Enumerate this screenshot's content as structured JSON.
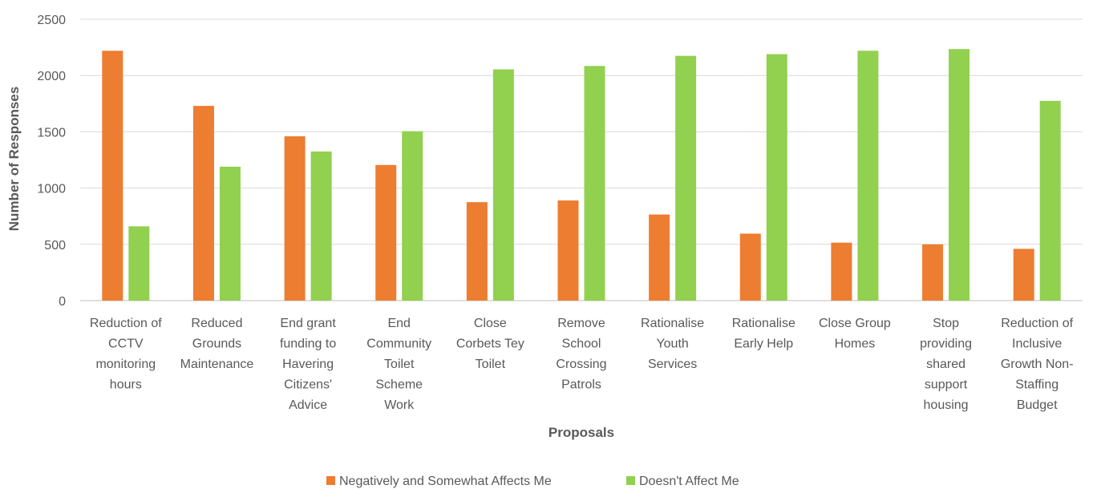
{
  "chart_data": {
    "type": "bar",
    "title": "",
    "xlabel": "Proposals",
    "ylabel": "Number of Responses",
    "ylim": [
      0,
      2500
    ],
    "yticks": [
      0,
      500,
      1000,
      1500,
      2000,
      2500
    ],
    "grid": true,
    "legend_position": "bottom",
    "categories": [
      [
        "Reduction of",
        "CCTV",
        "monitoring",
        "hours"
      ],
      [
        "Reduced",
        "Grounds",
        "Maintenance"
      ],
      [
        "End grant",
        "funding to",
        "Havering",
        "Citizens'",
        "Advice"
      ],
      [
        "End",
        "Community",
        "Toilet",
        "Scheme",
        "Work"
      ],
      [
        "Close",
        "Corbets Tey",
        "Toilet"
      ],
      [
        "Remove",
        "School",
        "Crossing",
        "Patrols"
      ],
      [
        "Rationalise",
        "Youth",
        "Services"
      ],
      [
        "Rationalise",
        "Early Help"
      ],
      [
        "Close Group",
        "Homes"
      ],
      [
        "Stop",
        "providing",
        "shared",
        "support",
        "housing"
      ],
      [
        "Reduction of",
        "Inclusive",
        "Growth Non-",
        "Staffing",
        "Budget"
      ]
    ],
    "series": [
      {
        "name": "Negatively and Somewhat Affects Me",
        "color": "#ED7D31",
        "values": [
          2220,
          1730,
          1460,
          1205,
          875,
          890,
          765,
          595,
          515,
          500,
          460
        ]
      },
      {
        "name": "Doesn't Affect Me",
        "color": "#92D050",
        "values": [
          660,
          1190,
          1325,
          1505,
          2055,
          2085,
          2175,
          2190,
          2220,
          2235,
          1775
        ]
      }
    ]
  }
}
